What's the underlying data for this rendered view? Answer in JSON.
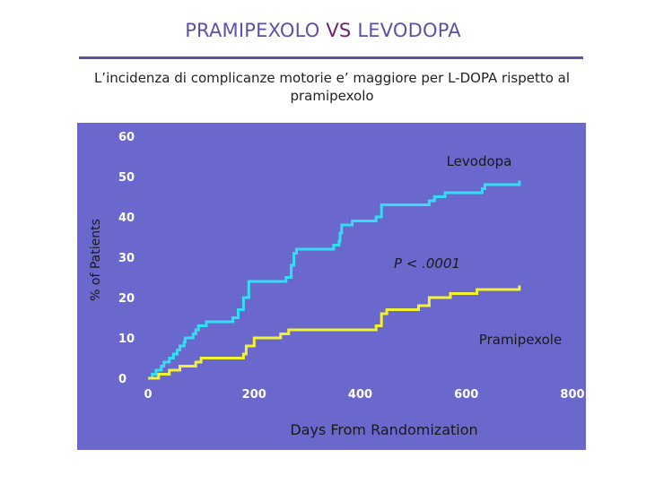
{
  "slide": {
    "title_part1": "PRAMIPEXOLO ",
    "title_part2": "VS ",
    "title_part3": "LEVODOPA",
    "subtitle_line1": "L’incidenza di complicanze motorie e’ maggiore per L-DOPA rispetto al",
    "subtitle_line2": "pramipexolo"
  },
  "colors": {
    "plot_background": "#6a68cc",
    "levodopa_line": "#33ddf2",
    "pramipexole_line": "#f2f233",
    "tick_label": "#ffffff",
    "annotation_text": "#1a1a1a"
  },
  "chart_data": {
    "type": "line",
    "title": "",
    "xlabel": "Days From Randomization",
    "ylabel": "% of Patients",
    "xlim": [
      0,
      800
    ],
    "ylim": [
      0,
      60
    ],
    "x_ticks": [
      "0",
      "200",
      "400",
      "600",
      "800"
    ],
    "y_ticks": [
      "0",
      "10",
      "20",
      "30",
      "40",
      "50",
      "60"
    ],
    "grid": false,
    "series": [
      {
        "name": "Levodopa",
        "points": [
          [
            0,
            0
          ],
          [
            8,
            1
          ],
          [
            15,
            2
          ],
          [
            25,
            3
          ],
          [
            30,
            4
          ],
          [
            40,
            5
          ],
          [
            48,
            6
          ],
          [
            55,
            7
          ],
          [
            60,
            8
          ],
          [
            68,
            9
          ],
          [
            70,
            10
          ],
          [
            85,
            11
          ],
          [
            90,
            12
          ],
          [
            95,
            13
          ],
          [
            110,
            14
          ],
          [
            160,
            15
          ],
          [
            170,
            17
          ],
          [
            180,
            20
          ],
          [
            190,
            24
          ],
          [
            260,
            25
          ],
          [
            270,
            28
          ],
          [
            275,
            31
          ],
          [
            280,
            32
          ],
          [
            350,
            33
          ],
          [
            360,
            34
          ],
          [
            362,
            36
          ],
          [
            365,
            38
          ],
          [
            385,
            39
          ],
          [
            430,
            40
          ],
          [
            440,
            43
          ],
          [
            530,
            44
          ],
          [
            540,
            45
          ],
          [
            560,
            46
          ],
          [
            630,
            47
          ],
          [
            635,
            48
          ],
          [
            700,
            49
          ]
        ]
      },
      {
        "name": "Pramipexole",
        "points": [
          [
            0,
            0
          ],
          [
            20,
            1
          ],
          [
            40,
            2
          ],
          [
            60,
            3
          ],
          [
            90,
            4
          ],
          [
            100,
            5
          ],
          [
            180,
            6
          ],
          [
            185,
            8
          ],
          [
            200,
            10
          ],
          [
            250,
            11
          ],
          [
            265,
            12
          ],
          [
            430,
            13
          ],
          [
            440,
            16
          ],
          [
            450,
            17
          ],
          [
            510,
            18
          ],
          [
            530,
            20
          ],
          [
            570,
            21
          ],
          [
            620,
            22
          ],
          [
            700,
            23
          ]
        ]
      }
    ],
    "annotations": [
      "Levodopa",
      "P < .0001",
      "Pramipexole"
    ]
  }
}
